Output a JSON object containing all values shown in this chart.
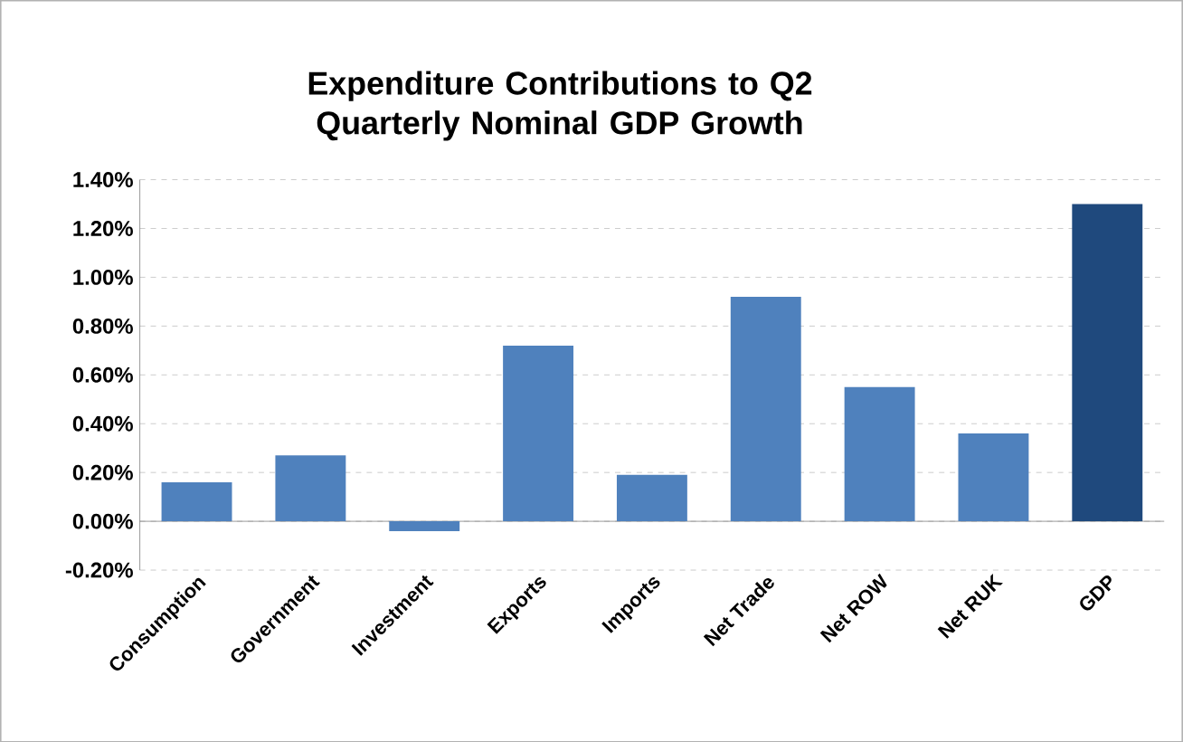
{
  "chart_data": {
    "type": "bar",
    "title": "Expenditure Contributions to Q2 Quarterly Nominal GDP Growth",
    "categories": [
      "Consumption",
      "Government",
      "Investment",
      "Exports",
      "Imports",
      "Net Trade",
      "Net ROW",
      "Net RUK",
      "GDP"
    ],
    "values": [
      0.16,
      0.27,
      -0.04,
      0.72,
      0.19,
      0.92,
      0.55,
      0.36,
      1.3
    ],
    "colors": [
      "#4f81bd",
      "#4f81bd",
      "#4f81bd",
      "#4f81bd",
      "#4f81bd",
      "#4f81bd",
      "#4f81bd",
      "#4f81bd",
      "#1f497d"
    ],
    "ylim": [
      -0.2,
      1.4
    ],
    "yticks": [
      {
        "value": -0.2,
        "label": "-0.20%"
      },
      {
        "value": 0,
        "label": "0.00%"
      },
      {
        "value": 0.2,
        "label": "0.20%"
      },
      {
        "value": 0.4,
        "label": "0.40%"
      },
      {
        "value": 0.6,
        "label": "0.60%"
      },
      {
        "value": 0.8,
        "label": "0.80%"
      },
      {
        "value": 1.0,
        "label": "1.00%"
      },
      {
        "value": 1.2,
        "label": "1.20%"
      },
      {
        "value": 1.4,
        "label": "1.40%"
      }
    ],
    "grid": "y"
  }
}
